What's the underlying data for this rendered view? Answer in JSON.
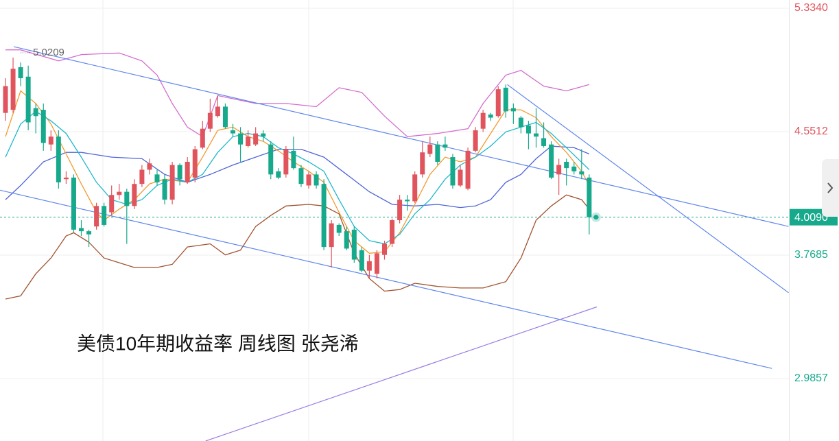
{
  "chart_data": {
    "type": "candlestick",
    "title": "美债10年期收益率 周线图 张尧浠",
    "up_color": "#e0555d",
    "down_color": "#17a98b",
    "open": [
      4.67,
      4.69,
      4.96,
      4.9,
      4.7,
      4.69,
      4.47,
      4.52,
      4.25,
      4.26,
      3.94,
      3.92,
      3.95,
      4.08,
      4.04,
      4.15,
      4.17,
      4.08,
      4.22,
      4.31,
      4.28,
      4.25,
      4.12,
      4.34,
      4.23,
      4.26,
      4.45,
      4.57,
      4.65,
      4.71,
      4.56,
      4.54,
      4.46,
      4.47,
      4.54,
      4.47,
      4.3,
      4.28,
      4.43,
      4.32,
      4.21,
      4.28,
      4.22,
      3.82,
      3.96,
      3.92,
      3.93,
      3.8,
      3.67,
      3.65,
      3.77,
      3.84,
      3.99,
      4.12,
      4.11,
      4.28,
      4.41,
      4.47,
      4.47,
      4.39,
      4.21,
      4.19,
      4.43,
      4.57,
      4.66,
      4.65,
      4.83,
      4.7,
      4.64,
      4.59,
      4.54,
      4.51,
      4.47,
      4.28,
      4.36,
      4.33,
      4.3,
      4.26
    ],
    "high": [
      4.89,
      5.0209,
      4.99,
      4.97,
      4.73,
      4.73,
      4.56,
      4.56,
      4.3,
      4.28,
      3.99,
      3.93,
      4.1,
      4.1,
      4.21,
      4.22,
      4.19,
      4.25,
      4.34,
      4.38,
      4.31,
      4.28,
      4.36,
      4.35,
      4.39,
      4.46,
      4.62,
      4.76,
      4.78,
      4.73,
      4.6,
      4.58,
      4.56,
      4.58,
      4.56,
      4.49,
      4.32,
      4.46,
      4.52,
      4.34,
      4.3,
      4.3,
      4.25,
      3.99,
      3.97,
      3.95,
      3.95,
      3.82,
      3.77,
      3.8,
      3.86,
      4.0,
      4.15,
      4.15,
      4.3,
      4.49,
      4.52,
      4.49,
      4.52,
      4.41,
      4.34,
      4.45,
      4.58,
      4.69,
      4.67,
      4.84,
      4.85,
      4.73,
      4.65,
      4.62,
      4.7,
      4.61,
      4.49,
      4.38,
      4.38,
      4.36,
      4.44,
      4.28
    ],
    "low": [
      4.62,
      4.67,
      4.84,
      4.56,
      4.54,
      4.43,
      4.43,
      4.19,
      4.22,
      3.91,
      3.89,
      3.82,
      3.93,
      3.95,
      4.02,
      4.12,
      3.84,
      4.06,
      4.2,
      4.28,
      4.21,
      4.09,
      4.09,
      4.21,
      4.22,
      4.23,
      4.44,
      4.55,
      4.64,
      4.57,
      4.52,
      4.36,
      4.45,
      4.46,
      4.49,
      4.25,
      4.25,
      4.26,
      4.31,
      4.2,
      4.19,
      4.19,
      3.8,
      3.69,
      3.89,
      3.8,
      3.72,
      3.66,
      3.62,
      3.62,
      3.74,
      3.82,
      3.97,
      4.05,
      4.1,
      4.26,
      4.39,
      4.34,
      4.43,
      4.19,
      4.2,
      4.18,
      4.42,
      4.55,
      4.62,
      4.64,
      4.64,
      4.6,
      4.54,
      4.44,
      4.45,
      4.45,
      4.25,
      4.15,
      4.21,
      4.28,
      4.25,
      3.9
    ],
    "close": [
      4.84,
      4.95,
      4.89,
      4.61,
      4.65,
      4.48,
      4.52,
      4.23,
      4.26,
      3.93,
      3.92,
      3.9,
      4.08,
      3.96,
      4.15,
      4.17,
      4.08,
      4.22,
      4.31,
      4.35,
      4.23,
      4.12,
      4.34,
      4.25,
      4.36,
      4.44,
      4.57,
      4.67,
      4.71,
      4.58,
      4.54,
      4.47,
      4.52,
      4.54,
      4.52,
      4.28,
      4.26,
      4.44,
      4.32,
      4.22,
      4.28,
      4.21,
      3.82,
      3.97,
      3.91,
      3.81,
      3.74,
      3.67,
      3.73,
      3.78,
      3.84,
      3.99,
      4.12,
      4.11,
      4.28,
      4.42,
      4.47,
      4.36,
      4.45,
      4.21,
      4.31,
      4.43,
      4.56,
      4.67,
      4.64,
      4.82,
      4.68,
      4.68,
      4.58,
      4.54,
      4.52,
      4.46,
      4.26,
      4.34,
      4.32,
      4.3,
      4.28,
      4.009
    ],
    "ylim": [
      2.59,
      5.386
    ],
    "yticks": [
      2.9857,
      3.7685,
      4.5512,
      {
        "value": 5.334,
        "label": "5.3340"
      }
    ],
    "grid": true,
    "last_price": {
      "value": 4.009,
      "label": "4.0090"
    },
    "overlays": [
      {
        "color": "#d46ccd",
        "x": [
          0,
          2,
          7,
          10,
          15,
          18,
          20,
          22,
          24,
          26,
          28,
          33,
          37,
          41,
          44,
          47,
          50,
          53,
          57,
          61,
          63,
          66,
          68,
          71,
          74,
          77
        ],
        "values": [
          5.07,
          5.07,
          5.0,
          5.04,
          5.05,
          5.0,
          4.91,
          4.73,
          4.58,
          4.52,
          4.78,
          4.73,
          4.73,
          4.71,
          4.83,
          4.8,
          4.65,
          4.52,
          4.54,
          4.57,
          4.73,
          4.91,
          4.94,
          4.84,
          4.81,
          4.85
        ]
      },
      {
        "color": "#4f63d8",
        "x": [
          0,
          2,
          5,
          8,
          10,
          14,
          18,
          21,
          24,
          27,
          30,
          33,
          36,
          39,
          42,
          45,
          48,
          51,
          54,
          57,
          60,
          62,
          64,
          66,
          68,
          70,
          72,
          75,
          77
        ],
        "values": [
          4.12,
          4.21,
          4.36,
          4.42,
          4.42,
          4.39,
          4.38,
          4.28,
          4.23,
          4.28,
          4.34,
          4.39,
          4.44,
          4.44,
          4.39,
          4.28,
          4.17,
          4.09,
          4.08,
          4.09,
          4.07,
          4.08,
          4.12,
          4.23,
          4.28,
          4.38,
          4.46,
          4.45,
          4.41
        ]
      },
      {
        "color": "#a0522d",
        "x": [
          0,
          2,
          4,
          6,
          8,
          9,
          11,
          13,
          15,
          17,
          20,
          22,
          24,
          27,
          29,
          31,
          33,
          35,
          37,
          40,
          42,
          44,
          46,
          48,
          50,
          52,
          54,
          57,
          60,
          63,
          66,
          68,
          70,
          72,
          74,
          76,
          77
        ],
        "values": [
          3.49,
          3.51,
          3.65,
          3.75,
          3.89,
          3.91,
          3.85,
          3.75,
          3.72,
          3.69,
          3.69,
          3.71,
          3.82,
          3.84,
          3.77,
          3.8,
          3.95,
          4.02,
          4.08,
          4.09,
          4.08,
          4.03,
          3.78,
          3.62,
          3.54,
          3.55,
          3.59,
          3.57,
          3.56,
          3.56,
          3.6,
          3.75,
          3.99,
          4.08,
          4.15,
          4.12,
          4.06
        ]
      },
      {
        "color": "#f39a2d",
        "x": [
          0,
          2,
          4,
          6,
          8,
          10,
          12,
          13,
          15,
          17,
          19,
          21,
          24,
          26,
          28,
          30,
          32,
          34,
          36,
          38,
          40,
          42,
          44,
          46,
          48,
          50,
          52,
          54,
          56,
          58,
          60,
          62,
          64,
          66,
          68,
          70,
          72,
          74,
          76,
          77
        ],
        "values": [
          4.52,
          4.81,
          4.73,
          4.6,
          4.41,
          4.22,
          4.04,
          3.99,
          4.06,
          4.12,
          4.22,
          4.25,
          4.23,
          4.39,
          4.56,
          4.58,
          4.52,
          4.49,
          4.43,
          4.36,
          4.3,
          4.23,
          4.04,
          3.86,
          3.78,
          3.79,
          3.91,
          4.09,
          4.28,
          4.39,
          4.36,
          4.39,
          4.54,
          4.69,
          4.69,
          4.64,
          4.52,
          4.42,
          4.3,
          4.21
        ]
      },
      {
        "color": "#1fb8cc",
        "x": [
          0,
          2,
          4,
          6,
          8,
          10,
          12,
          14,
          16,
          18,
          20,
          22,
          24,
          26,
          28,
          30,
          32,
          34,
          36,
          38,
          40,
          42,
          44,
          46,
          48,
          50,
          52,
          54,
          56,
          58,
          60,
          62,
          64,
          66,
          68,
          70,
          72,
          74,
          77
        ],
        "values": [
          4.39,
          4.6,
          4.68,
          4.62,
          4.54,
          4.39,
          4.23,
          4.12,
          4.09,
          4.12,
          4.21,
          4.25,
          4.23,
          4.28,
          4.42,
          4.52,
          4.54,
          4.52,
          4.45,
          4.41,
          4.36,
          4.3,
          4.12,
          3.95,
          3.86,
          3.84,
          3.9,
          4.03,
          4.12,
          4.25,
          4.34,
          4.39,
          4.46,
          4.55,
          4.58,
          4.61,
          4.54,
          4.45,
          4.31
        ]
      }
    ],
    "trendlines": [
      {
        "color": "#5f86ee",
        "x": [
          1.09,
          103.3
        ],
        "values": [
          5.09,
          3.95
        ]
      },
      {
        "color": "#5f86ee",
        "x": [
          -0.72,
          101.1
        ],
        "values": [
          4.18,
          3.05
        ]
      },
      {
        "color": "#5f86ee",
        "x": [
          66.2,
          103.3
        ],
        "values": [
          4.85,
          3.53
        ]
      },
      {
        "color": "#9a7de2",
        "x": [
          26.4,
          78.0
        ],
        "values": [
          2.59,
          3.44
        ]
      }
    ]
  }
}
